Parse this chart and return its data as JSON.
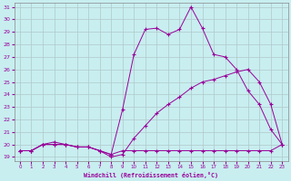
{
  "xlabel": "Windchill (Refroidissement éolien,°C)",
  "background_color": "#c8eef0",
  "grid_color": "#b0c8c8",
  "line_color": "#990099",
  "ylim_min": 19,
  "ylim_max": 31,
  "xlim_min": 0,
  "xlim_max": 23,
  "yticks": [
    19,
    20,
    21,
    22,
    23,
    24,
    25,
    26,
    27,
    28,
    29,
    30,
    31
  ],
  "xticks": [
    0,
    1,
    2,
    3,
    4,
    5,
    6,
    7,
    8,
    9,
    10,
    11,
    12,
    13,
    14,
    15,
    16,
    17,
    18,
    19,
    20,
    21,
    22,
    23
  ],
  "line1_x": [
    0,
    1,
    2,
    3,
    4,
    5,
    6,
    7,
    8,
    9,
    10,
    11,
    12,
    13,
    14,
    15,
    16,
    17,
    18,
    19,
    20,
    21,
    22,
    23
  ],
  "line1_y": [
    19.5,
    19.5,
    20.0,
    20.0,
    20.0,
    19.8,
    19.8,
    19.5,
    19.2,
    19.5,
    19.5,
    19.5,
    19.5,
    19.5,
    19.5,
    19.5,
    19.5,
    19.5,
    19.5,
    19.5,
    19.5,
    19.5,
    19.5,
    20.0
  ],
  "line2_x": [
    0,
    1,
    2,
    3,
    4,
    5,
    6,
    7,
    8,
    9,
    10,
    11,
    12,
    13,
    14,
    15,
    16,
    17,
    18,
    19,
    20,
    21,
    22,
    23
  ],
  "line2_y": [
    19.5,
    19.5,
    20.0,
    20.0,
    20.0,
    19.8,
    19.8,
    19.5,
    19.2,
    22.8,
    27.2,
    29.2,
    29.3,
    28.8,
    29.2,
    31.0,
    29.3,
    27.2,
    27.0,
    26.0,
    24.3,
    23.2,
    21.2,
    20.0
  ],
  "line3_x": [
    0,
    1,
    2,
    3,
    4,
    5,
    6,
    7,
    8,
    9,
    10,
    11,
    12,
    13,
    14,
    15,
    16,
    17,
    18,
    19,
    20,
    21,
    22,
    23
  ],
  "line3_y": [
    19.5,
    19.5,
    20.0,
    20.2,
    20.0,
    19.8,
    19.8,
    19.5,
    19.0,
    19.2,
    20.5,
    21.5,
    22.5,
    23.2,
    23.8,
    24.5,
    25.0,
    25.2,
    25.5,
    25.8,
    26.0,
    25.0,
    23.2,
    20.0
  ]
}
